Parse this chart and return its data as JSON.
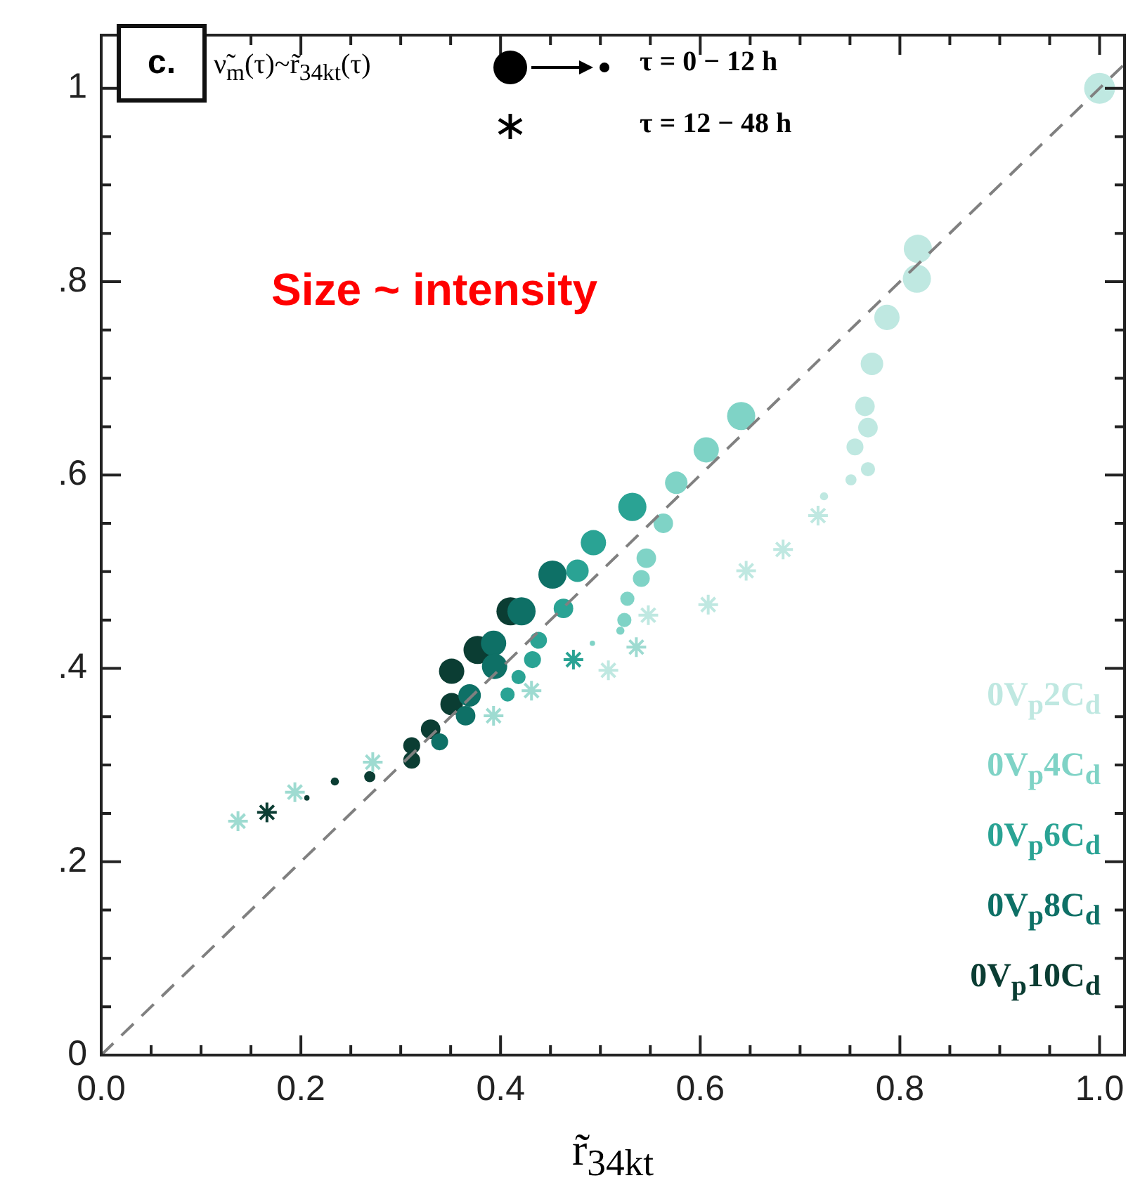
{
  "chart_data": {
    "type": "bubble",
    "xlabel": "r̃$_{34kt}$",
    "xlim": [
      0,
      1.025
    ],
    "ylim": [
      0,
      1.055
    ],
    "xticks": [
      {
        "value": 0,
        "label": "0.0"
      },
      {
        "value": 0.05,
        "label": null
      },
      {
        "value": 0.1,
        "label": null
      },
      {
        "value": 0.15,
        "label": null
      },
      {
        "value": 0.2,
        "label": "0.2"
      },
      {
        "value": 0.25,
        "label": null
      },
      {
        "value": 0.3,
        "label": null
      },
      {
        "value": 0.35,
        "label": null
      },
      {
        "value": 0.4,
        "label": "0.4"
      },
      {
        "value": 0.45,
        "label": null
      },
      {
        "value": 0.5,
        "label": null
      },
      {
        "value": 0.55,
        "label": null
      },
      {
        "value": 0.6,
        "label": "0.6"
      },
      {
        "value": 0.65,
        "label": null
      },
      {
        "value": 0.7,
        "label": null
      },
      {
        "value": 0.75,
        "label": null
      },
      {
        "value": 0.8,
        "label": "0.8"
      },
      {
        "value": 0.85,
        "label": null
      },
      {
        "value": 0.9,
        "label": null
      },
      {
        "value": 0.95,
        "label": null
      },
      {
        "value": 1,
        "label": "1.0"
      }
    ],
    "yticks": [
      0,
      {
        "value": 0.05,
        "label": null
      },
      {
        "value": 0.1,
        "label": null
      },
      {
        "value": 0.15,
        "label": null
      },
      {
        "value": 0.2,
        "label": ".2"
      },
      {
        "value": 0.25,
        "label": null
      },
      {
        "value": 0.3,
        "label": null
      },
      {
        "value": 0.35,
        "label": null
      },
      {
        "value": 0.4,
        "label": ".4"
      },
      {
        "value": 0.45,
        "label": null
      },
      {
        "value": 0.5,
        "label": null
      },
      {
        "value": 0.55,
        "label": null
      },
      {
        "value": 0.6,
        "label": ".6"
      },
      {
        "value": 0.65,
        "label": null
      },
      {
        "value": 0.7,
        "label": null
      },
      {
        "value": 0.75,
        "label": null
      },
      {
        "value": 0.8,
        "label": ".8"
      },
      {
        "value": 0.85,
        "label": null
      },
      {
        "value": 0.9,
        "label": null
      },
      {
        "value": 0.95,
        "label": null
      },
      1
    ],
    "grid": false,
    "legend": "bottom right",
    "annotations": [
      "c.",
      "ν̃$_{m}$(τ)~r̃$_{34kt}$(τ)",
      "τ = 0 − 12 h",
      "τ = 12 − 48 h",
      "Size ~ intensity"
    ],
    "series": [
      {
        "type": "line",
        "color": "#808080",
        "line_style": "dashed",
        "marker": "none",
        "x": [
          0,
          1.025
        ],
        "values": [
          0,
          1.025
        ]
      },
      {
        "name": "0V$_{p}$2C$_{d}$",
        "color": "#bfe8e1",
        "x": [
          1.0,
          0.818,
          0.817,
          0.787,
          0.772,
          0.765,
          0.768,
          0.755,
          0.768,
          0.751,
          0.724
        ],
        "values": [
          1.0,
          0.834,
          0.803,
          0.763,
          0.715,
          0.671,
          0.649,
          0.629,
          0.606,
          0.595,
          0.578
        ],
        "sizes": [
          1,
          0.83,
          0.83,
          0.67,
          0.53,
          0.4,
          0.4,
          0.3,
          0.21,
          0.13,
          0.07
        ]
      },
      {
        "type": "scatter",
        "marker": "cross",
        "color": "#bfe8e1",
        "x": [
          0.718,
          0.683,
          0.646,
          0.608,
          0.548,
          0.508
        ],
        "values": [
          0.558,
          0.523,
          0.501,
          0.466,
          0.455,
          0.398
        ]
      },
      {
        "name": "0V$_{p}$4C$_{d}$",
        "color": "#7fd3c6",
        "x": [
          0.641,
          0.606,
          0.576,
          0.563,
          0.546,
          0.541,
          0.527,
          0.524,
          0.52,
          0.492
        ],
        "values": [
          0.661,
          0.626,
          0.592,
          0.55,
          0.514,
          0.493,
          0.472,
          0.45,
          0.439,
          0.426
        ],
        "sizes": [
          0.83,
          0.67,
          0.53,
          0.4,
          0.4,
          0.3,
          0.21,
          0.21,
          0.07,
          0.03
        ]
      },
      {
        "type": "scatter",
        "marker": "cross",
        "color": "#9edbd1",
        "x": [
          0.536,
          0.431,
          0.393,
          0.272,
          0.194,
          0.137
        ],
        "values": [
          0.422,
          0.377,
          0.351,
          0.303,
          0.272,
          0.242
        ]
      },
      {
        "name": "0V$_{p}$6C$_{d}$",
        "color": "#2aa394",
        "x": [
          0.532,
          0.493,
          0.477,
          0.463,
          0.438,
          0.432,
          0.418,
          0.407
        ],
        "values": [
          0.567,
          0.53,
          0.501,
          0.462,
          0.429,
          0.409,
          0.391,
          0.373
        ],
        "sizes": [
          0.83,
          0.67,
          0.53,
          0.4,
          0.3,
          0.3,
          0.21,
          0.21
        ]
      },
      {
        "type": "scatter",
        "marker": "cross",
        "color": "#2aa394",
        "x": [
          0.473
        ],
        "values": [
          0.409
        ]
      },
      {
        "name": "0V$_{p}$8C$_{d}$",
        "color": "#0e7066",
        "x": [
          0.452,
          0.421,
          0.393,
          0.394,
          0.369,
          0.365,
          0.339
        ],
        "values": [
          0.497,
          0.459,
          0.426,
          0.402,
          0.372,
          0.351,
          0.324
        ],
        "sizes": [
          0.83,
          0.83,
          0.67,
          0.67,
          0.53,
          0.4,
          0.3
        ]
      },
      {
        "name": "0V$_{p}$10C$_{d}$",
        "color": "#0b3d33",
        "x": [
          0.41,
          0.377,
          0.351,
          0.351,
          0.33,
          0.311,
          0.311,
          0.269,
          0.234,
          0.206
        ],
        "values": [
          0.459,
          0.419,
          0.397,
          0.363,
          0.337,
          0.32,
          0.305,
          0.288,
          0.283,
          0.266
        ],
        "sizes": [
          0.83,
          0.83,
          0.67,
          0.53,
          0.4,
          0.3,
          0.3,
          0.13,
          0.07,
          0.03
        ]
      },
      {
        "type": "scatter",
        "marker": "cross",
        "color": "#0b3d33",
        "x": [
          0.166
        ],
        "values": [
          0.251
        ]
      }
    ]
  }
}
